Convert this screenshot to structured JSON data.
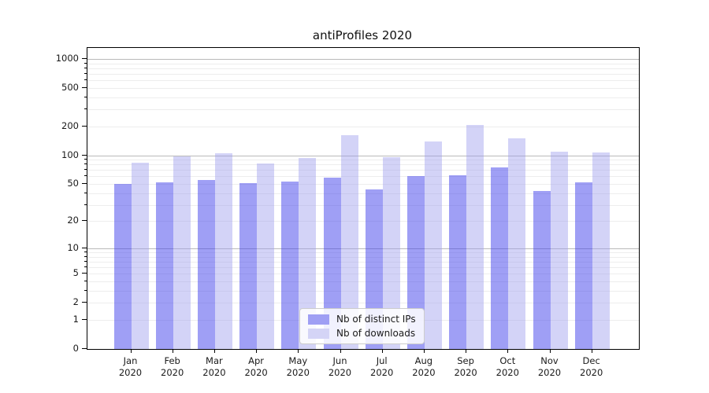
{
  "chart_data": {
    "type": "bar",
    "title": "antiProfiles 2020",
    "categories": [
      "Jan",
      "Feb",
      "Mar",
      "Apr",
      "May",
      "Jun",
      "Jul",
      "Aug",
      "Sep",
      "Oct",
      "Nov",
      "Dec"
    ],
    "x_sublabel": "2020",
    "series": [
      {
        "name": "Nb of distinct IPs",
        "fill": "rgba(70,70,235,0.52)",
        "swatch": "#9f9ff4",
        "values": [
          50,
          52,
          55,
          51,
          53,
          58,
          44,
          61,
          62,
          75,
          42,
          52
        ]
      },
      {
        "name": "Nb of downloads",
        "fill": "rgba(160,160,238,0.46)",
        "swatch": "#d4d4f6",
        "values": [
          84,
          98,
          104,
          82,
          93,
          162,
          96,
          138,
          207,
          150,
          110,
          106
        ]
      }
    ],
    "yscale": "symlog-log1p",
    "ymax": 1300,
    "yticks": [
      0,
      1,
      2,
      5,
      10,
      20,
      50,
      100,
      200,
      500,
      1000
    ],
    "ytick_labels": [
      "0",
      "1",
      "2",
      "5",
      "10",
      "20",
      "50",
      "100",
      "200",
      "500",
      "1000"
    ],
    "grid_major": [
      10,
      100,
      1000
    ],
    "grid_minor": [
      1,
      2,
      3,
      4,
      5,
      6,
      7,
      8,
      9,
      20,
      30,
      40,
      50,
      60,
      70,
      80,
      90,
      200,
      300,
      400,
      500,
      600,
      700,
      800,
      900
    ],
    "legend_position": "inside-bottom-center",
    "colors": {
      "grid_minor": "#ededed",
      "grid_major": "#b9b9b9",
      "axis": "#000000",
      "text": "#1a1a1a",
      "background": "#ffffff"
    }
  }
}
